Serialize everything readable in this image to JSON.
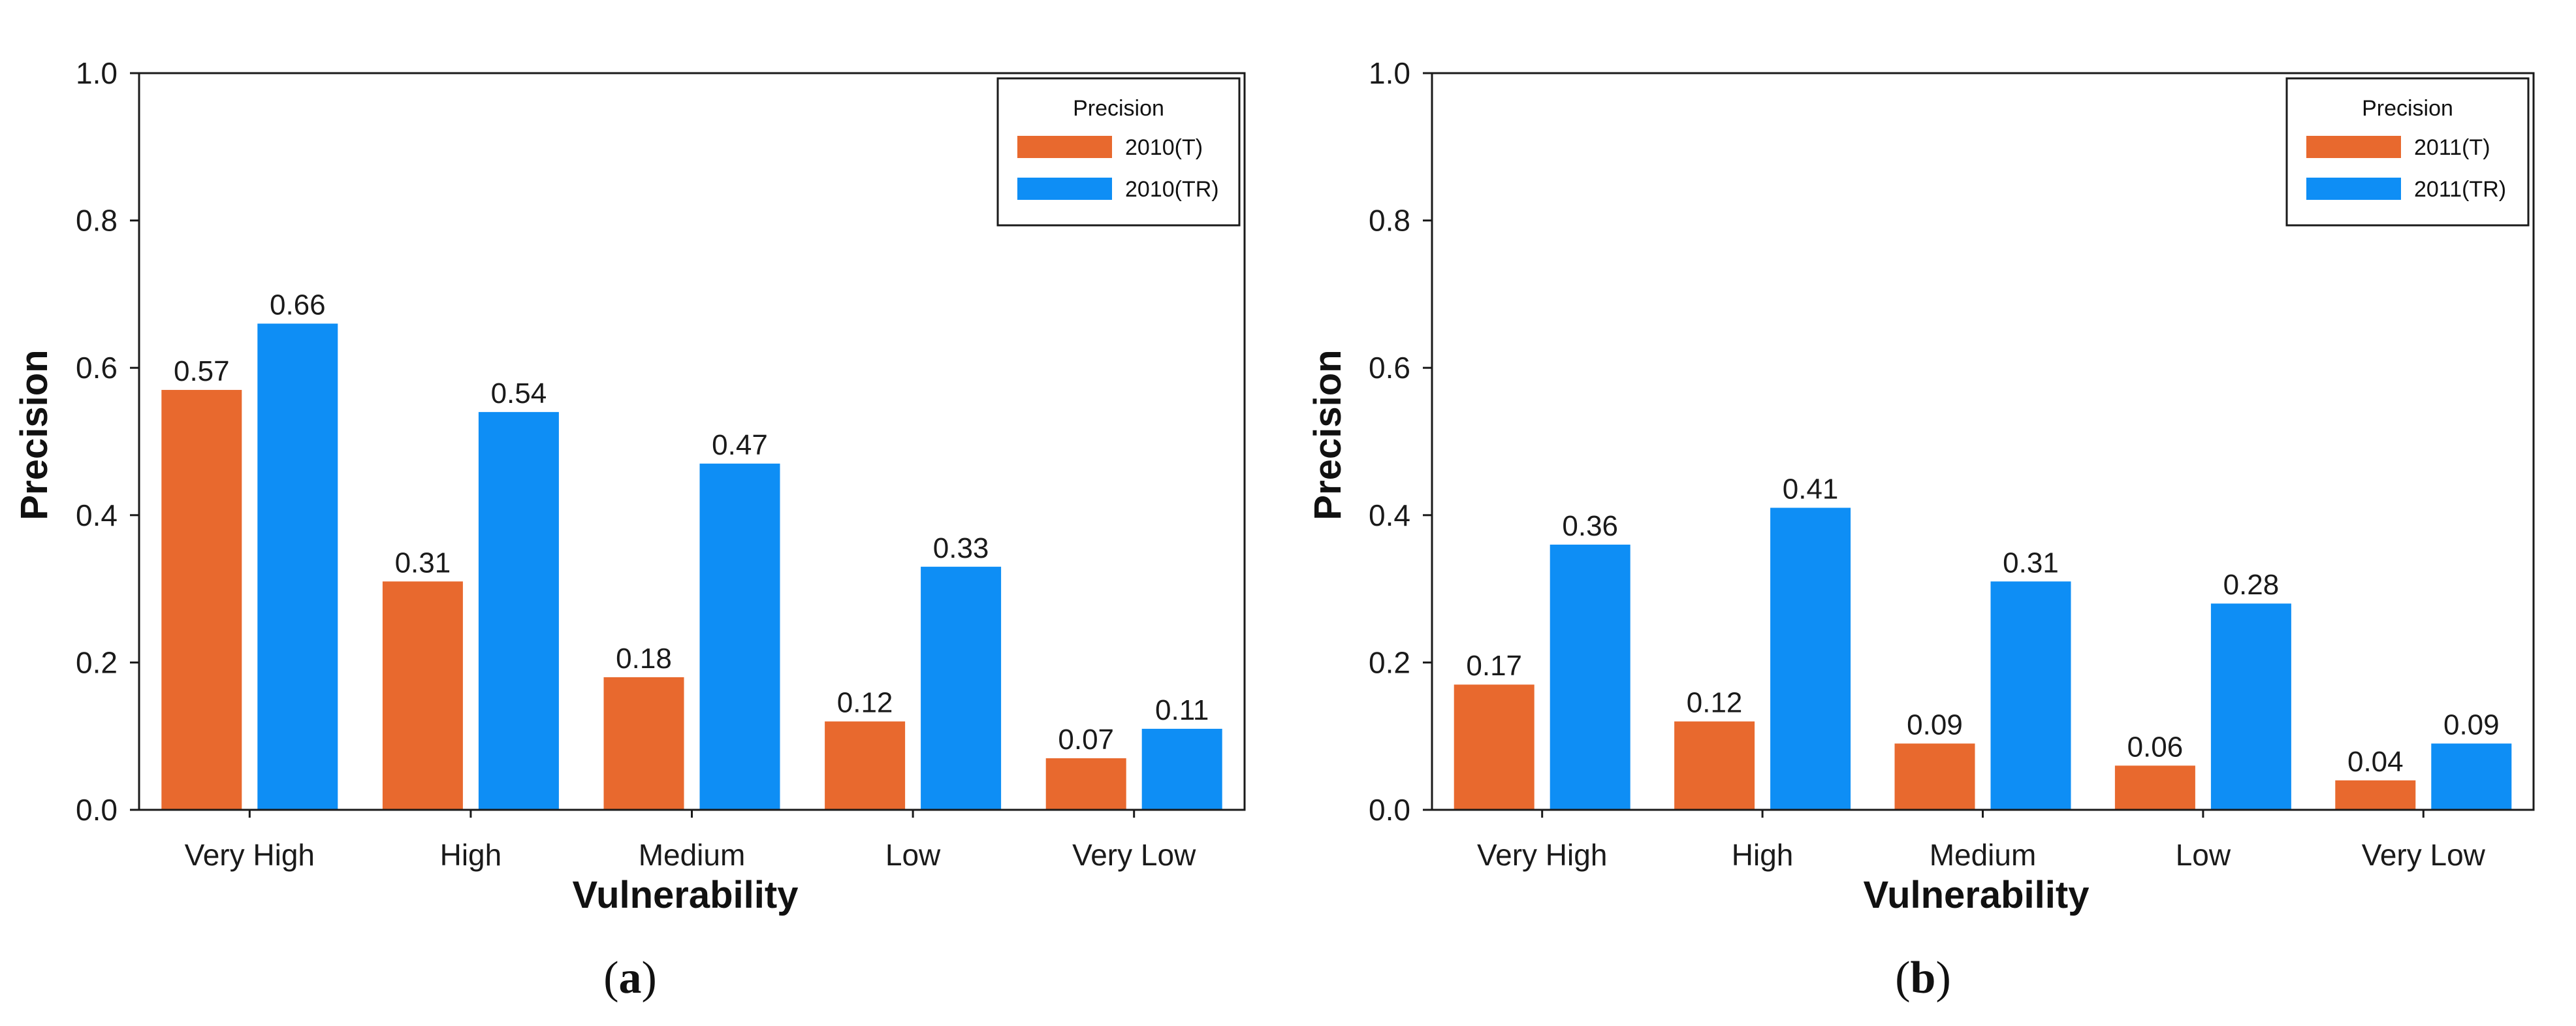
{
  "chart_data": [
    {
      "type": "bar",
      "panel_label": "a",
      "categories": [
        "Very High",
        "High",
        "Medium",
        "Low",
        "Very Low"
      ],
      "series": [
        {
          "name": "2010(T)",
          "values": [
            0.57,
            0.31,
            0.18,
            0.12,
            0.07
          ],
          "color": "#E8692E"
        },
        {
          "name": "2010(TR)",
          "values": [
            0.66,
            0.54,
            0.47,
            0.33,
            0.11
          ],
          "color": "#0E8EF5"
        }
      ],
      "value_labels": [
        [
          "0.57",
          "0.31",
          "0.18",
          "0.12",
          "0.07"
        ],
        [
          "0.66",
          "0.54",
          "0.47",
          "0.33",
          "0.11"
        ]
      ],
      "xlabel": "Vulnerability",
      "ylabel": "Precision",
      "ylim": [
        0,
        1.0
      ],
      "yticks": [
        "0.0",
        "0.2",
        "0.4",
        "0.6",
        "0.8",
        "1.0"
      ],
      "legend_title": "Precision",
      "legend_position": "top-right",
      "grid": false
    },
    {
      "type": "bar",
      "panel_label": "b",
      "categories": [
        "Very High",
        "High",
        "Medium",
        "Low",
        "Very Low"
      ],
      "series": [
        {
          "name": "2011(T)",
          "values": [
            0.17,
            0.12,
            0.09,
            0.06,
            0.04
          ],
          "color": "#E8692E"
        },
        {
          "name": "2011(TR)",
          "values": [
            0.36,
            0.41,
            0.31,
            0.28,
            0.09
          ],
          "color": "#0E8EF5"
        }
      ],
      "value_labels": [
        [
          "0.17",
          "0.12",
          "0.09",
          "0.06",
          "0.04"
        ],
        [
          "0.36",
          "0.41",
          "0.31",
          "0.28",
          "0.09"
        ]
      ],
      "xlabel": "Vulnerability",
      "ylabel": "Precision",
      "ylim": [
        0,
        1.0
      ],
      "yticks": [
        "0.0",
        "0.2",
        "0.4",
        "0.6",
        "0.8",
        "1.0"
      ],
      "legend_title": "Precision",
      "legend_position": "top-right",
      "grid": false
    }
  ]
}
